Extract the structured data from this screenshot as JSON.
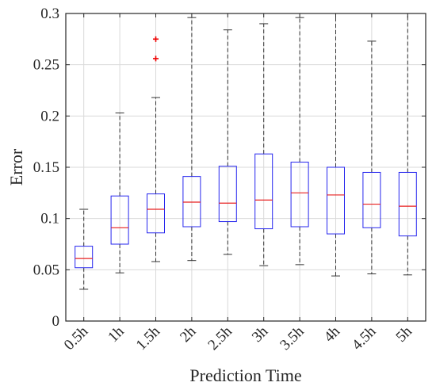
{
  "chart_data": {
    "type": "boxplot",
    "title": "",
    "xlabel": "Prediction Time",
    "ylabel": "Error",
    "ylim": [
      0,
      0.3
    ],
    "yticks": [
      0,
      0.05,
      0.1,
      0.15,
      0.2,
      0.25,
      0.3
    ],
    "ytick_labels": [
      "0",
      "0.05",
      "0.1",
      "0.15",
      "0.2",
      "0.25",
      "0.3"
    ],
    "grid": true,
    "categories": [
      "0.5h",
      "1h",
      "1.5h",
      "2h",
      "2.5h",
      "3h",
      "3.5h",
      "4h",
      "4.5h",
      "5h"
    ],
    "boxes": [
      {
        "whisker_low": 0.031,
        "q1": 0.052,
        "median": 0.061,
        "q3": 0.073,
        "whisker_high": 0.109,
        "outliers": []
      },
      {
        "whisker_low": 0.047,
        "q1": 0.075,
        "median": 0.091,
        "q3": 0.122,
        "whisker_high": 0.203,
        "outliers": []
      },
      {
        "whisker_low": 0.058,
        "q1": 0.086,
        "median": 0.109,
        "q3": 0.124,
        "whisker_high": 0.218,
        "outliers": [
          0.256,
          0.275
        ]
      },
      {
        "whisker_low": 0.059,
        "q1": 0.092,
        "median": 0.116,
        "q3": 0.141,
        "whisker_high": 0.296,
        "outliers": []
      },
      {
        "whisker_low": 0.065,
        "q1": 0.097,
        "median": 0.115,
        "q3": 0.151,
        "whisker_high": 0.284,
        "outliers": []
      },
      {
        "whisker_low": 0.054,
        "q1": 0.09,
        "median": 0.118,
        "q3": 0.163,
        "whisker_high": 0.29,
        "outliers": []
      },
      {
        "whisker_low": 0.055,
        "q1": 0.092,
        "median": 0.125,
        "q3": 0.155,
        "whisker_high": 0.296,
        "outliers": []
      },
      {
        "whisker_low": 0.044,
        "q1": 0.085,
        "median": 0.123,
        "q3": 0.15,
        "whisker_high": 0.3,
        "outliers": []
      },
      {
        "whisker_low": 0.046,
        "q1": 0.091,
        "median": 0.114,
        "q3": 0.145,
        "whisker_high": 0.273,
        "outliers": []
      },
      {
        "whisker_low": 0.045,
        "q1": 0.083,
        "median": 0.112,
        "q3": 0.145,
        "whisker_high": 0.3,
        "outliers": []
      }
    ],
    "colors": {
      "box": "#2626ee",
      "median": "#e82020",
      "whisker": "#333333",
      "outlier": "#ee0000",
      "grid": "#d9d9d9",
      "axis": "#262626"
    }
  }
}
